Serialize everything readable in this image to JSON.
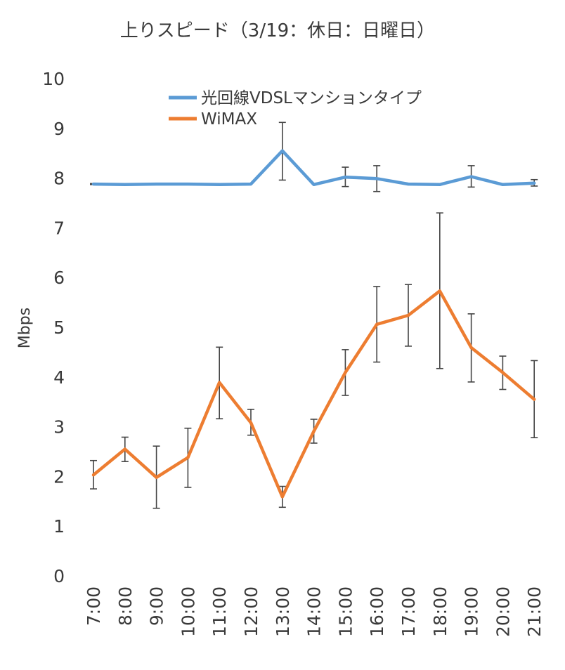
{
  "chart_data": {
    "type": "line",
    "title": "上りスピード（3/19：休日：日曜日）",
    "xlabel": "",
    "ylabel": "Mbps",
    "ylim": [
      0,
      10
    ],
    "yticks": [
      "0",
      "1",
      "2",
      "3",
      "4",
      "5",
      "6",
      "7",
      "8",
      "9",
      "10"
    ],
    "grid": false,
    "legend_position": "top",
    "categories": [
      "7:00",
      "8:00",
      "9:00",
      "10:00",
      "11:00",
      "12:00",
      "13:00",
      "14:00",
      "15:00",
      "16:00",
      "17:00",
      "18:00",
      "19:00",
      "20:00",
      "21:00"
    ],
    "series": [
      {
        "name": "光回線VDSLマンションタイプ",
        "color": "#5b9bd5",
        "values": [
          7.88,
          7.87,
          7.88,
          7.88,
          7.87,
          7.88,
          8.55,
          7.87,
          8.02,
          7.99,
          7.88,
          7.87,
          8.03,
          7.87,
          7.9
        ],
        "error_low": [
          7.87,
          null,
          null,
          null,
          null,
          null,
          7.96,
          null,
          7.83,
          7.73,
          null,
          null,
          7.82,
          null,
          7.84
        ],
        "error_high": [
          7.89,
          null,
          null,
          null,
          null,
          null,
          9.12,
          null,
          8.22,
          8.25,
          null,
          null,
          8.25,
          null,
          7.97
        ]
      },
      {
        "name": "WiMAX",
        "color": "#ed7d31",
        "values": [
          2.03,
          2.55,
          1.98,
          2.38,
          3.89,
          3.08,
          1.59,
          2.91,
          4.09,
          5.06,
          5.24,
          5.73,
          4.59,
          4.09,
          3.55
        ],
        "error_low": [
          1.75,
          2.3,
          1.36,
          1.78,
          3.16,
          2.83,
          1.38,
          2.67,
          3.63,
          4.3,
          4.62,
          4.17,
          3.9,
          3.75,
          2.78
        ],
        "error_high": [
          2.32,
          2.79,
          2.61,
          2.97,
          4.6,
          3.35,
          1.8,
          3.15,
          4.55,
          5.82,
          5.86,
          7.3,
          5.27,
          4.42,
          4.33
        ]
      }
    ]
  }
}
